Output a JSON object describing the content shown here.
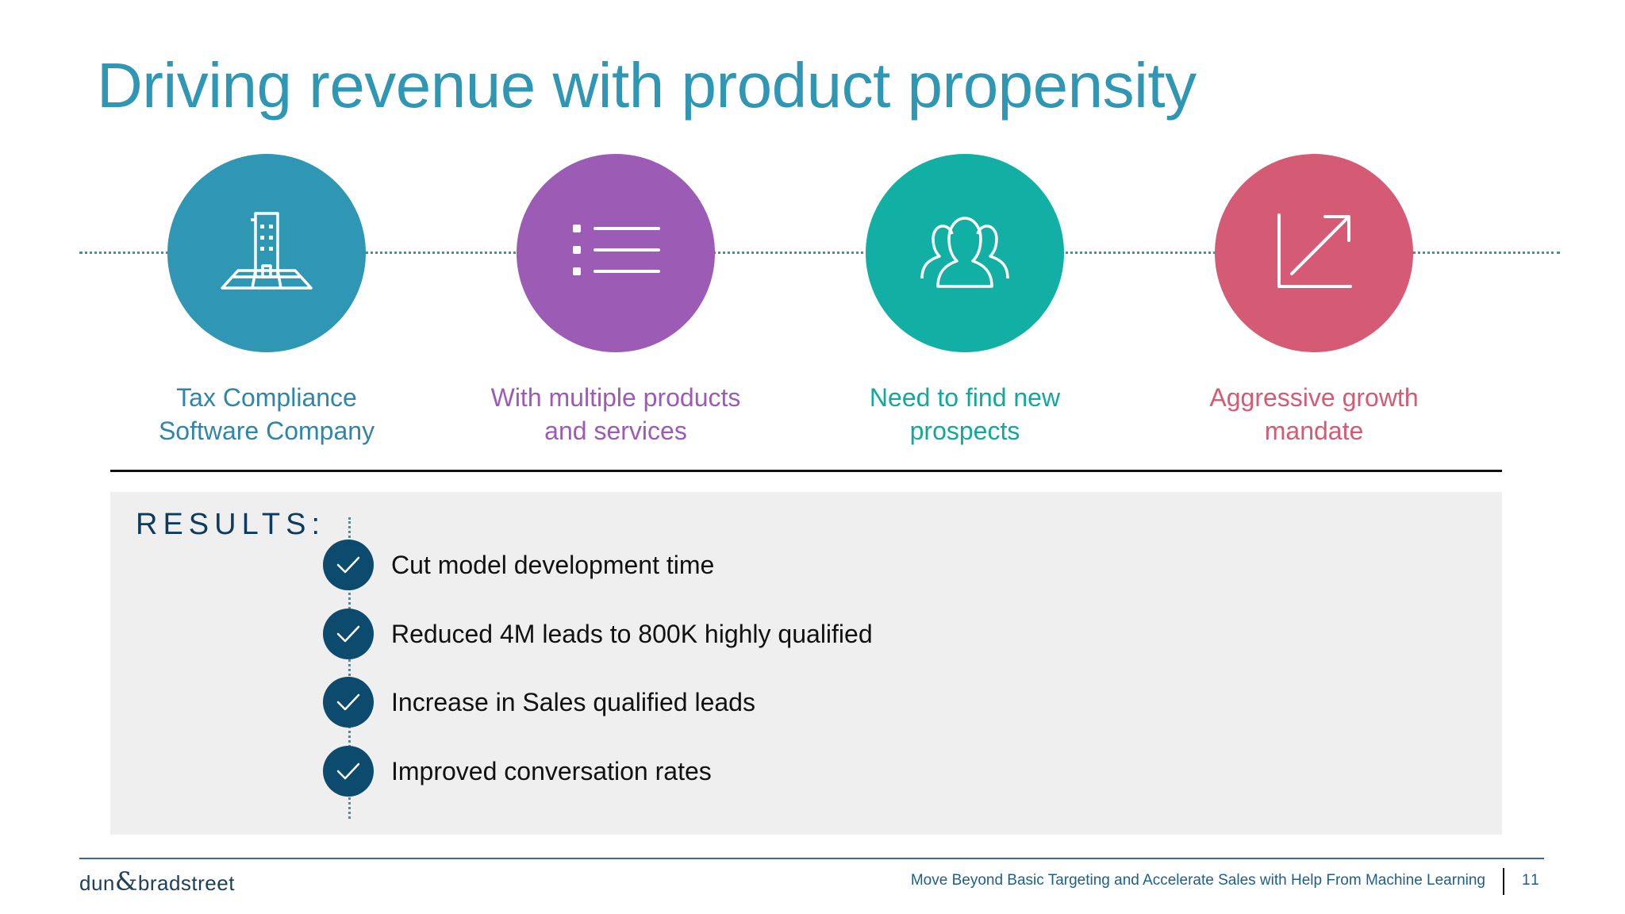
{
  "title": "Driving revenue with product propensity",
  "steps": [
    {
      "label_line1": "Tax Compliance",
      "label_line2": "Software Company",
      "icon": "building-icon",
      "color": "#2f96b4"
    },
    {
      "label_line1": "With multiple products",
      "label_line2": "and services",
      "icon": "list-icon",
      "color": "#9c5bb5"
    },
    {
      "label_line1": "Need to find new",
      "label_line2": "prospects",
      "icon": "people-group-icon",
      "color": "#12b0a4"
    },
    {
      "label_line1": "Aggressive growth",
      "label_line2": "mandate",
      "icon": "growth-arrow-icon",
      "color": "#d55a74"
    }
  ],
  "results": {
    "heading": "RESULTS:",
    "items": [
      "Cut model development time",
      "Reduced 4M leads to 800K highly qualified",
      "Increase in Sales qualified leads",
      "Improved conversation rates"
    ]
  },
  "footer": {
    "logo_left": "dun",
    "logo_amp": "&",
    "logo_right": "bradstreet",
    "text": "Move Beyond Basic Targeting and Accelerate Sales with Help From Machine Learning",
    "page_number": "11"
  },
  "colors": {
    "accent": "#2f96b4",
    "check_bg": "#0c4a6e",
    "results_bg": "#efeff0"
  }
}
